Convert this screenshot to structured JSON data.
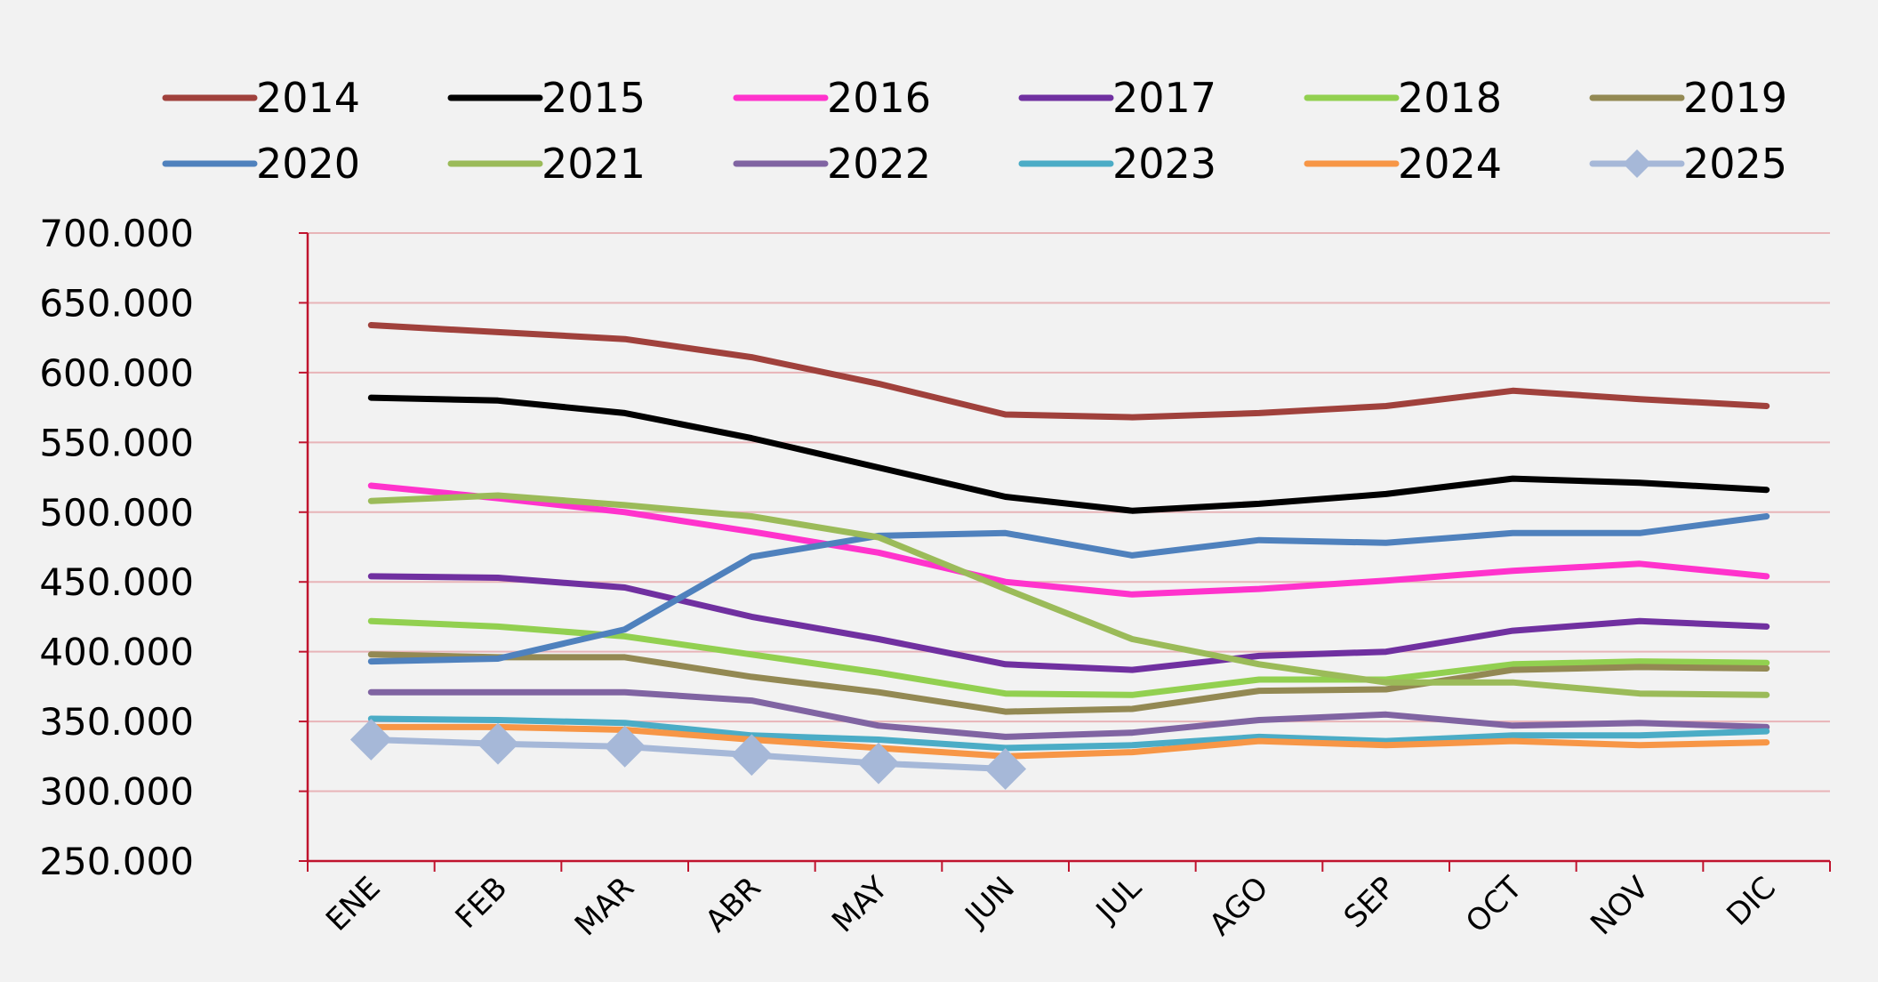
{
  "chart_data": {
    "type": "line",
    "title": "",
    "xlabel": "",
    "ylabel": "",
    "ylim": [
      250000,
      700000
    ],
    "yticks": [
      250000,
      300000,
      350000,
      400000,
      450000,
      500000,
      550000,
      600000,
      650000,
      700000
    ],
    "ytick_labels": [
      "250.000",
      "300.000",
      "350.000",
      "400.000",
      "450.000",
      "500.000",
      "550.000",
      "600.000",
      "650.000",
      "700.000"
    ],
    "categories": [
      "ENE",
      "FEB",
      "MAR",
      "ABR",
      "MAY",
      "JUN",
      "JUL",
      "AGO",
      "SEP",
      "OCT",
      "NOV",
      "DIC"
    ],
    "grid": true,
    "legend_position": "top",
    "series": [
      {
        "name": "2014",
        "color": "#a0413c",
        "values": [
          634000,
          629000,
          624000,
          611000,
          592000,
          570000,
          568000,
          571000,
          576000,
          587000,
          581000,
          576000
        ]
      },
      {
        "name": "2015",
        "color": "#000000",
        "values": [
          582000,
          580000,
          571000,
          553000,
          532000,
          511000,
          501000,
          506000,
          513000,
          524000,
          521000,
          516000
        ]
      },
      {
        "name": "2016",
        "color": "#ff33cc",
        "values": [
          519000,
          510000,
          500000,
          486000,
          471000,
          450000,
          441000,
          445000,
          451000,
          458000,
          463000,
          454000
        ]
      },
      {
        "name": "2017",
        "color": "#7030a0",
        "values": [
          454000,
          453000,
          446000,
          425000,
          409000,
          391000,
          387000,
          397000,
          400000,
          415000,
          422000,
          418000
        ]
      },
      {
        "name": "2018",
        "color": "#92d050",
        "values": [
          422000,
          418000,
          411000,
          398000,
          385000,
          370000,
          369000,
          380000,
          380000,
          391000,
          393000,
          392000
        ]
      },
      {
        "name": "2019",
        "color": "#938953",
        "values": [
          398000,
          396000,
          396000,
          382000,
          371000,
          357000,
          359000,
          372000,
          373000,
          387000,
          389000,
          388000
        ]
      },
      {
        "name": "2020",
        "color": "#4f81bd",
        "values": [
          393000,
          395000,
          416000,
          468000,
          483000,
          485000,
          469000,
          480000,
          478000,
          485000,
          485000,
          497000
        ]
      },
      {
        "name": "2021",
        "color": "#9bbb59",
        "values": [
          508000,
          512000,
          505000,
          497000,
          482000,
          445000,
          409000,
          391000,
          378000,
          378000,
          370000,
          369000
        ]
      },
      {
        "name": "2022",
        "color": "#8064a2",
        "values": [
          371000,
          371000,
          371000,
          365000,
          347000,
          339000,
          342000,
          351000,
          355000,
          347000,
          349000,
          346000
        ]
      },
      {
        "name": "2023",
        "color": "#4bacc6",
        "values": [
          352000,
          351000,
          349000,
          340000,
          337000,
          331000,
          333000,
          339000,
          336000,
          340000,
          340000,
          343000
        ]
      },
      {
        "name": "2024",
        "color": "#f79646",
        "values": [
          346000,
          346000,
          344000,
          337000,
          331000,
          325000,
          328000,
          336000,
          333000,
          336000,
          333000,
          335000
        ]
      },
      {
        "name": "2025",
        "color": "#a6b8d8",
        "marker": "diamond",
        "values": [
          337000,
          334000,
          332000,
          326000,
          320000,
          316000,
          null,
          null,
          null,
          null,
          null,
          null
        ]
      }
    ]
  }
}
